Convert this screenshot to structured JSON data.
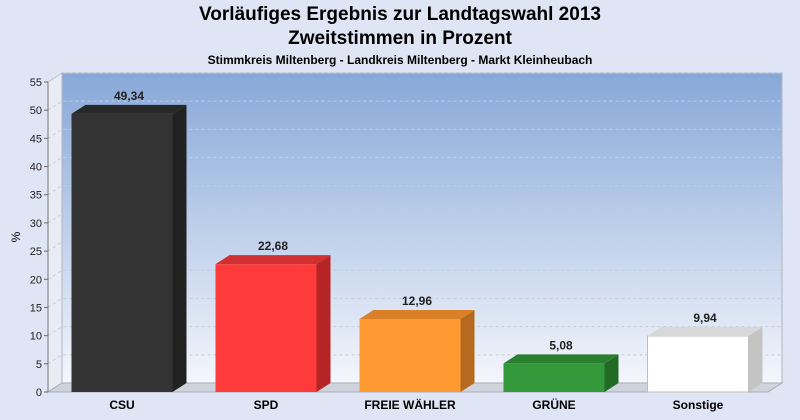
{
  "chart_data": {
    "type": "bar",
    "title": "Vorläufiges Ergebnis zur Landtagswahl 2013",
    "subtitle": "Zweitstimmen in Prozent",
    "subtitle2": "Stimmkreis Miltenberg - Landkreis Miltenberg - Markt Kleinheubach",
    "xlabel": "",
    "ylabel": "%",
    "ylim": [
      0,
      55
    ],
    "yticks": [
      "0",
      "5",
      "10",
      "15",
      "20",
      "25",
      "30",
      "35",
      "40",
      "45",
      "50",
      "55"
    ],
    "grid": true,
    "categories": [
      "CSU",
      "SPD",
      "FREIE WÄHLER",
      "GRÜNE",
      "Sonstige"
    ],
    "values": [
      49.34,
      22.68,
      12.96,
      5.08,
      9.94
    ],
    "value_labels": [
      "49,34",
      "22,68",
      "12,96",
      "5,08",
      "9,94"
    ],
    "colors": [
      "#333333",
      "#ff3a3a",
      "#ff9a33",
      "#33993a",
      "#ffffff"
    ],
    "side_colors": [
      "#222222",
      "#b52525",
      "#b56a20",
      "#226b26",
      "#c4c4c4"
    ],
    "top_colors": [
      "#282828",
      "#d23030",
      "#d98028",
      "#2a8030",
      "#d8d8d8"
    ]
  }
}
